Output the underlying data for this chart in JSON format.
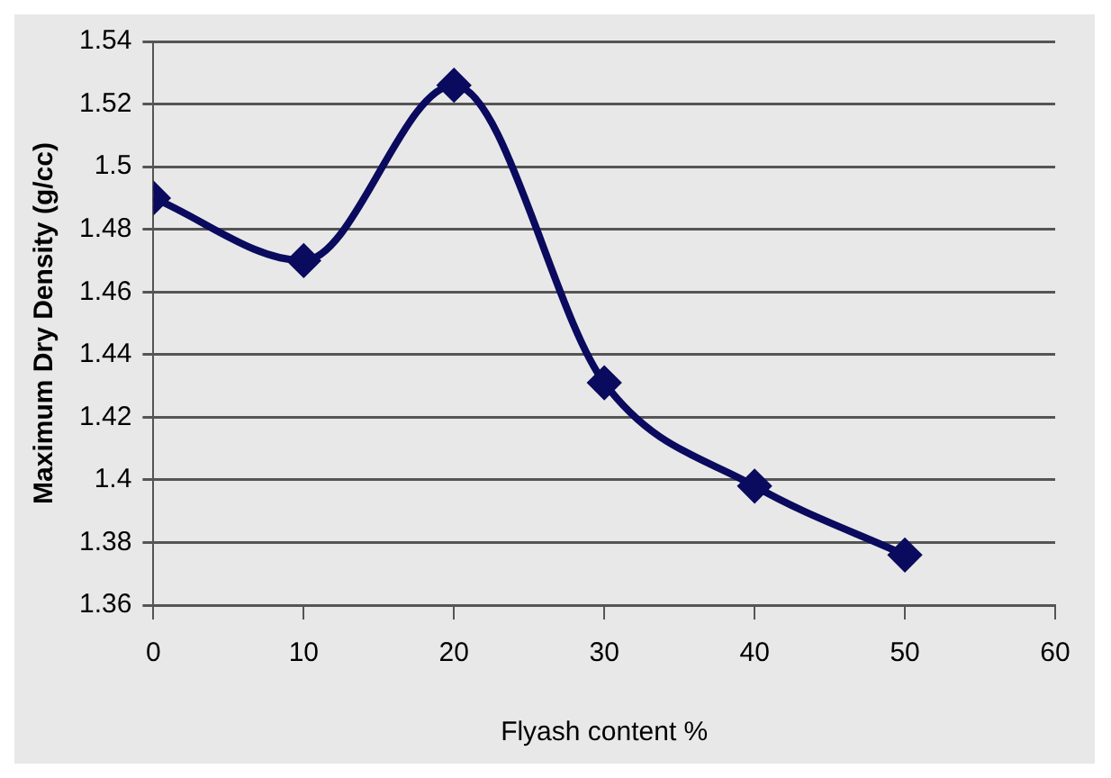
{
  "chart_data": {
    "type": "line",
    "xlabel": "Flyash content %",
    "ylabel": "Maximum Dry Density (g/cc)",
    "x": [
      0,
      10,
      20,
      30,
      40,
      50
    ],
    "series": [
      {
        "color": "#0a0a5e",
        "values": [
          1.49,
          1.47,
          1.526,
          1.431,
          1.398,
          1.376
        ]
      }
    ],
    "xlim": [
      0,
      60
    ],
    "xticks": [
      0,
      10,
      20,
      30,
      40,
      50,
      60
    ],
    "ylim": [
      1.36,
      1.54
    ],
    "yticks": [
      1.36,
      1.38,
      1.4,
      1.42,
      1.44,
      1.46,
      1.48,
      1.5,
      1.52,
      1.54
    ],
    "grid": "y",
    "legend": false,
    "marker": "diamond",
    "line_style": "solid"
  }
}
